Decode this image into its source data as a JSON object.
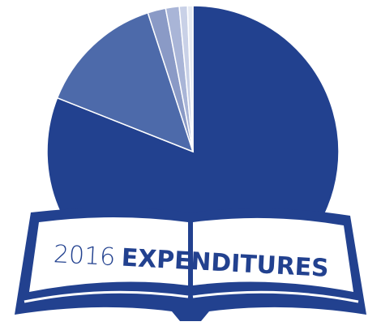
{
  "chart_data": {
    "type": "pie",
    "year": "2016",
    "title": "EXPENDITURES",
    "values": [
      81,
      14,
      2,
      1.5,
      0.9,
      0.6
    ],
    "colors": [
      "#22418f",
      "#4d6aaa",
      "#8a9ac6",
      "#a9b5d7",
      "#c9d1e7",
      "#e6eaf3"
    ]
  }
}
